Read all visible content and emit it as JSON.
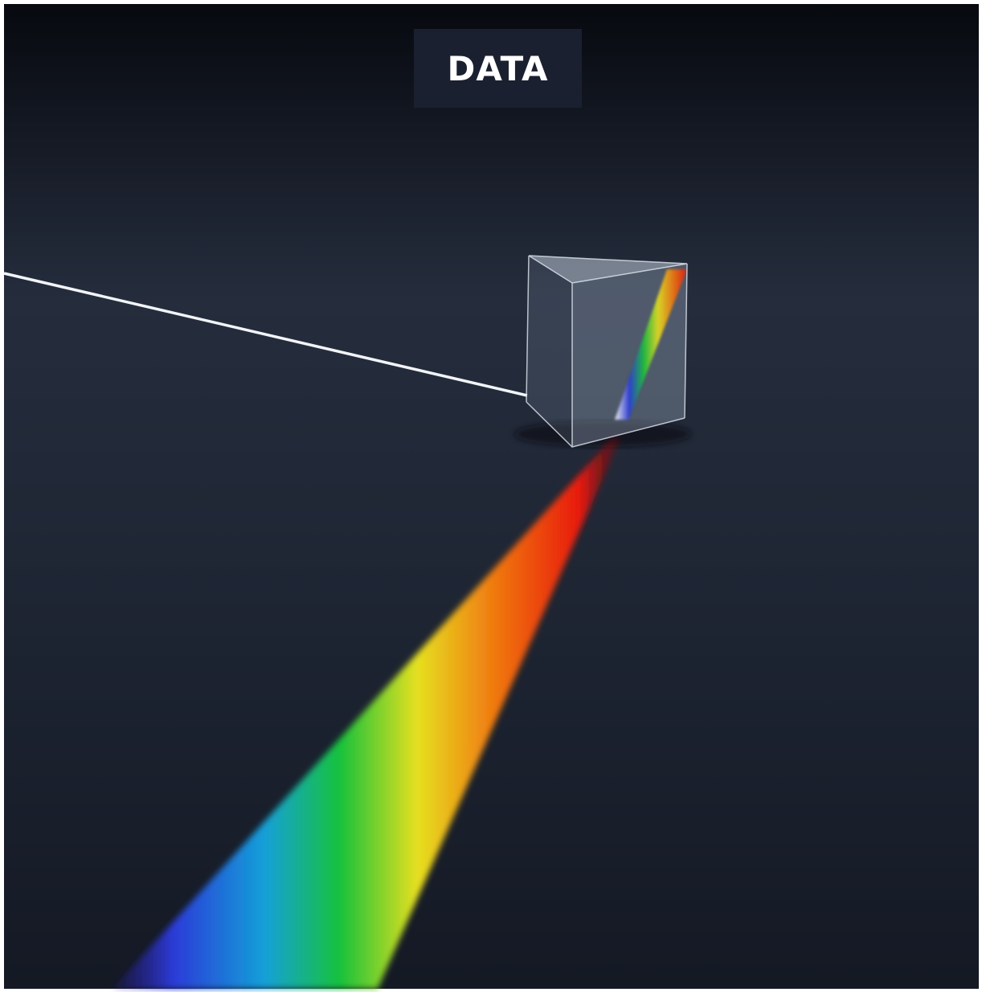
{
  "label": "DATA"
}
